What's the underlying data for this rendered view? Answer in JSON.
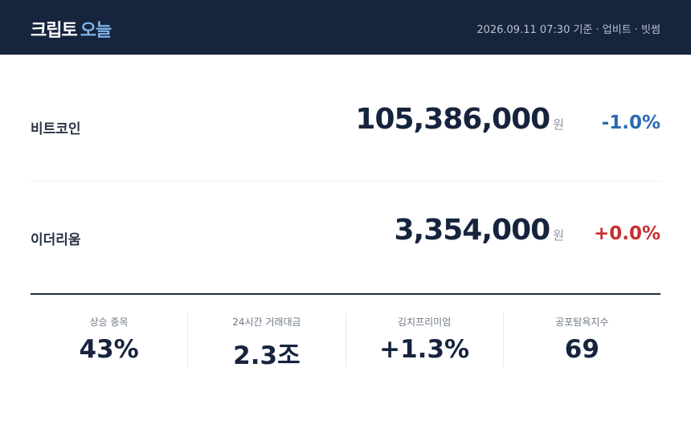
{
  "header": {
    "title": "크립토",
    "title_accent": "오늘",
    "timestamp": "2026.09.11 07:30 기준 · 업비트 · 빗썸"
  },
  "rows": [
    {
      "name": "비트코인",
      "price": "105,386,000",
      "unit": "원",
      "change": "-1.0%",
      "direction": "down"
    },
    {
      "name": "이더리움",
      "price": "3,354,000",
      "unit": "원",
      "change": "+0.0%",
      "direction": "up"
    }
  ],
  "stats": [
    {
      "label": "상승 종목",
      "value": "43%"
    },
    {
      "label": "24시간 거래대금",
      "value": "2.3조"
    },
    {
      "label": "김치프리미엄",
      "value": "+1.3%"
    },
    {
      "label": "공포탐욕지수",
      "value": "69"
    }
  ]
}
